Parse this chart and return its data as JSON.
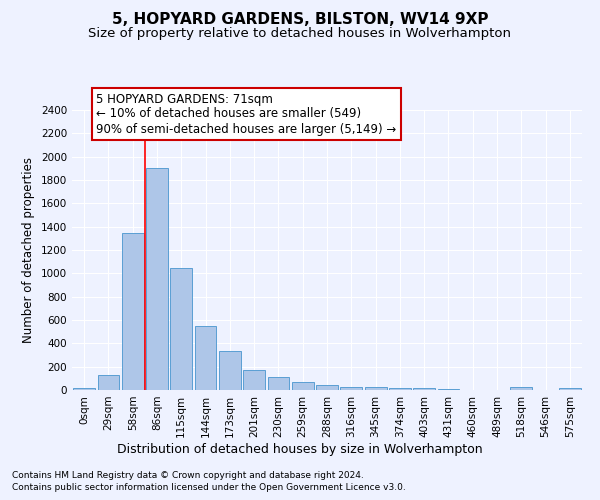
{
  "title": "5, HOPYARD GARDENS, BILSTON, WV14 9XP",
  "subtitle": "Size of property relative to detached houses in Wolverhampton",
  "xlabel": "Distribution of detached houses by size in Wolverhampton",
  "ylabel": "Number of detached properties",
  "bar_values": [
    15,
    125,
    1350,
    1900,
    1045,
    545,
    335,
    170,
    110,
    65,
    40,
    30,
    25,
    15,
    20,
    5,
    0,
    0,
    25,
    0,
    15
  ],
  "bar_labels": [
    "0sqm",
    "29sqm",
    "58sqm",
    "86sqm",
    "115sqm",
    "144sqm",
    "173sqm",
    "201sqm",
    "230sqm",
    "259sqm",
    "288sqm",
    "316sqm",
    "345sqm",
    "374sqm",
    "403sqm",
    "431sqm",
    "460sqm",
    "489sqm",
    "518sqm",
    "546sqm",
    "575sqm"
  ],
  "bar_color": "#aec6e8",
  "bar_edgecolor": "#5a9fd4",
  "ylim": [
    0,
    2400
  ],
  "yticks": [
    0,
    200,
    400,
    600,
    800,
    1000,
    1200,
    1400,
    1600,
    1800,
    2000,
    2200,
    2400
  ],
  "red_line_x": 2.5,
  "annotation_line1": "5 HOPYARD GARDENS: 71sqm",
  "annotation_line2": "← 10% of detached houses are smaller (549)",
  "annotation_line3": "90% of semi-detached houses are larger (5,149) →",
  "annotation_box_color": "#ffffff",
  "annotation_box_edgecolor": "#cc0000",
  "footer_line1": "Contains HM Land Registry data © Crown copyright and database right 2024.",
  "footer_line2": "Contains public sector information licensed under the Open Government Licence v3.0.",
  "background_color": "#eef2ff",
  "grid_color": "#ffffff",
  "title_fontsize": 11,
  "subtitle_fontsize": 9.5,
  "ylabel_fontsize": 8.5,
  "xlabel_fontsize": 9,
  "tick_fontsize": 7.5,
  "annotation_fontsize": 8.5,
  "footer_fontsize": 6.5
}
